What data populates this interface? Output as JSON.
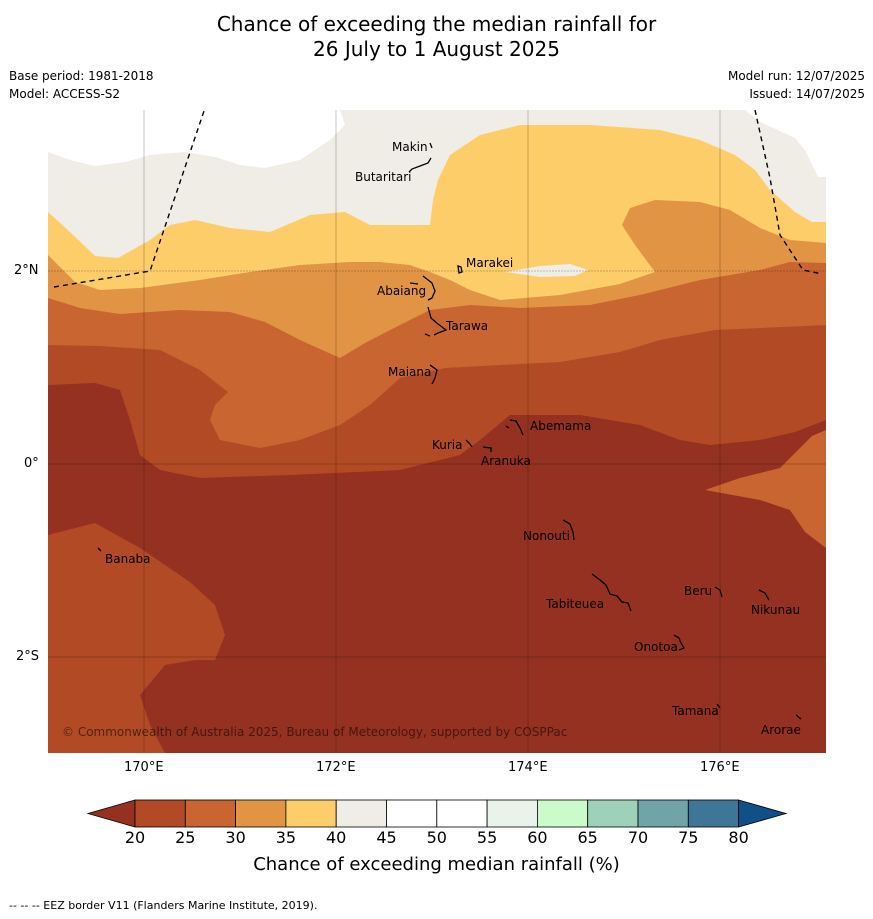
{
  "title": {
    "line1": "Chance of exceeding the median rainfall for",
    "line2": "26 July to 1 August 2025"
  },
  "meta": {
    "base_period": "Base period: 1981-2018",
    "model": "Model: ACCESS-S2",
    "model_run": "Model run: 12/07/2025",
    "issued": "Issued: 14/07/2025"
  },
  "axes": {
    "x_ticks": [
      "170°E",
      "172°E",
      "174°E",
      "176°E"
    ],
    "y_ticks": [
      "2°N",
      "0°",
      "2°S"
    ]
  },
  "places": [
    {
      "name": "Makin"
    },
    {
      "name": "Butaritari"
    },
    {
      "name": "Marakei"
    },
    {
      "name": "Abaiang"
    },
    {
      "name": "Tarawa"
    },
    {
      "name": "Maiana"
    },
    {
      "name": "Abemama"
    },
    {
      "name": "Kuria"
    },
    {
      "name": "Aranuka"
    },
    {
      "name": "Nonouti"
    },
    {
      "name": "Banaba"
    },
    {
      "name": "Beru"
    },
    {
      "name": "Tabiteuea"
    },
    {
      "name": "Nikunau"
    },
    {
      "name": "Onotoa"
    },
    {
      "name": "Tamana"
    },
    {
      "name": "Arorae"
    }
  ],
  "copyright": "© Commonwealth of Australia 2025, Bureau of Meteorology, supported by COSPPac",
  "colorbar": {
    "ticks": [
      "20",
      "25",
      "30",
      "35",
      "40",
      "45",
      "50",
      "55",
      "60",
      "65",
      "70",
      "75",
      "80"
    ],
    "colors": [
      "#953121",
      "#b24b25",
      "#c96530",
      "#e09444",
      "#fdcd6a",
      "#f0ece6",
      "#ffffff",
      "#ffffff",
      "#e9f3e9",
      "#ccfbcb",
      "#9dd1b9",
      "#6fa5a7",
      "#3e7698",
      "#114f87"
    ],
    "title": "Chance of exceeding median rainfall (%)"
  },
  "footer": "--  --  -- EEZ border V11 (Flanders Marine Institute, 2019)."
}
